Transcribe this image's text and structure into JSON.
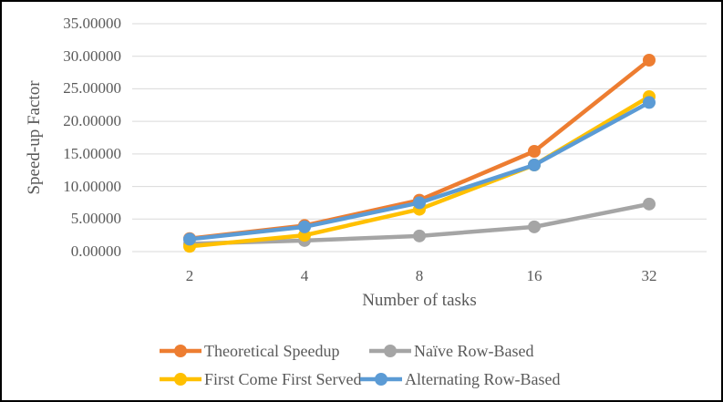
{
  "chart_data": {
    "type": "line",
    "categories": [
      "2",
      "4",
      "8",
      "16",
      "32"
    ],
    "series": [
      {
        "name": "Theoretical Speedup",
        "color": "#ED7D31",
        "marker": "circle",
        "values": [
          2.0,
          4.0,
          7.9,
          15.4,
          29.4
        ]
      },
      {
        "name": "Naïve Row-Based",
        "color": "#A5A5A5",
        "marker": "circle",
        "values": [
          1.2,
          1.7,
          2.4,
          3.8,
          7.3
        ]
      },
      {
        "name": "First Come First Served",
        "color": "#FFC000",
        "marker": "circle",
        "values": [
          0.8,
          2.5,
          6.5,
          13.3,
          23.8
        ]
      },
      {
        "name": "Alternating Row-Based",
        "color": "#5B9BD5",
        "marker": "circle",
        "values": [
          1.9,
          3.8,
          7.5,
          13.3,
          22.9
        ]
      }
    ],
    "title": "",
    "xlabel": "Number of tasks",
    "ylabel": "Speed-up Factor",
    "ylim": [
      0,
      35
    ],
    "y_tick_step": 5,
    "y_ticks_top_to_bottom": [
      "35.00000",
      "30.00000",
      "25.00000",
      "20.00000",
      "15.00000",
      "10.00000",
      "5.00000",
      "0.00000"
    ],
    "grid": true,
    "legend_position": "bottom",
    "legend_rows": [
      [
        "Theoretical Speedup",
        "Naïve Row-Based"
      ],
      [
        "First Come First Served",
        "Alternating Row-Based"
      ]
    ]
  },
  "colors": {
    "background": "#FFFFFF",
    "border": "#000000",
    "gridline": "#D9D9D9",
    "text": "#595959"
  }
}
